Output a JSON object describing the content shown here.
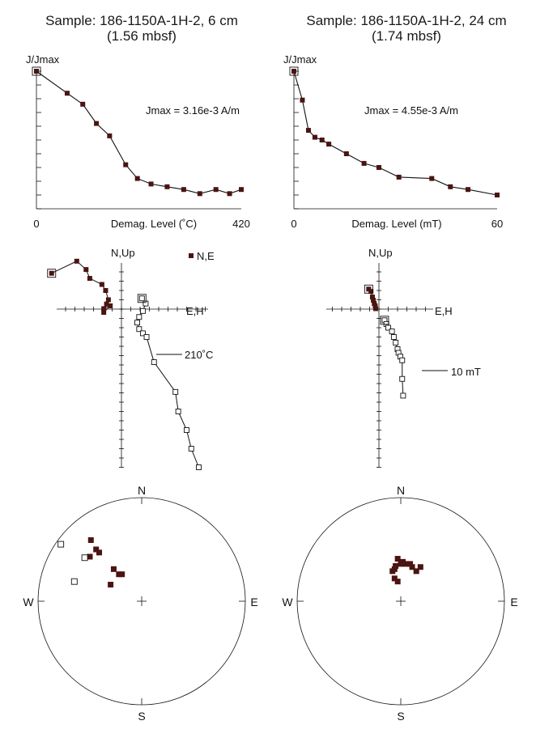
{
  "colors": {
    "ink": "#111111",
    "marker": "#4a1410",
    "background": "#ffffff"
  },
  "samples": [
    {
      "title": "Sample: 186-1150A-1H-2,  6 cm",
      "depth": "(1.56 mbsf)"
    },
    {
      "title": "Sample: 186-1150A-1H-2,  24 cm",
      "depth": "(1.74 mbsf)"
    }
  ],
  "chart_data": [
    {
      "type": "line",
      "panel": "intensity-left",
      "ylabel": "J/Jmax",
      "xlabel": "Demag. Level (˚C)",
      "xtick_labels": [
        "0",
        "420"
      ],
      "annotation": "Jmax = 3.16e-3 A/m",
      "xlim": [
        0,
        420
      ],
      "ylim": [
        0,
        1
      ],
      "x": [
        0,
        63,
        95,
        123,
        150,
        183,
        207,
        235,
        268,
        302,
        335,
        368,
        396,
        420
      ],
      "values": [
        1.0,
        0.84,
        0.76,
        0.62,
        0.53,
        0.32,
        0.22,
        0.18,
        0.16,
        0.14,
        0.11,
        0.14,
        0.11,
        0.14
      ]
    },
    {
      "type": "line",
      "panel": "intensity-right",
      "ylabel": "J/Jmax",
      "xlabel": "Demag. Level (mT)",
      "xtick_labels": [
        "0",
        "60"
      ],
      "annotation": "Jmax = 4.55e-3 A/m",
      "xlim": [
        0,
        60
      ],
      "ylim": [
        0,
        1
      ],
      "x": [
        0,
        2.5,
        4.3,
        6.2,
        8.3,
        10.3,
        15.5,
        20.7,
        25.1,
        31,
        40.7,
        46.2,
        51.4,
        60
      ],
      "values": [
        1.0,
        0.79,
        0.57,
        0.52,
        0.5,
        0.47,
        0.4,
        0.33,
        0.3,
        0.23,
        0.22,
        0.16,
        0.14,
        0.1
      ]
    },
    {
      "type": "scatter",
      "panel": "zijderveld-left",
      "axis_labels": {
        "n_up": "N,Up",
        "e_h": "E,H"
      },
      "legend": "N,E",
      "annotation": "210˚C",
      "xlim": [
        -8,
        11
      ],
      "ylim": [
        -20,
        4
      ],
      "series": [
        {
          "name": "N,E",
          "x": [
            -7.5,
            -4.8,
            -3.8,
            -3.4,
            -2.1,
            -1.7,
            -1.4,
            -1.6,
            -1.9,
            -1.2,
            -1.9
          ],
          "y": [
            3.85,
            5.15,
            4.25,
            3.3,
            2.65,
            2.0,
            1.0,
            0.55,
            0.05,
            0.35,
            -0.35
          ]
        },
        {
          "name": "",
          "x": [
            2.2,
            2.6,
            2.3,
            1.9,
            1.7,
            1.9,
            2.3,
            2.7,
            3.5,
            5.8,
            6.1,
            7.0,
            7.5,
            8.3
          ],
          "y": [
            1.15,
            0.6,
            -0.2,
            -0.85,
            -1.45,
            -2.15,
            -2.6,
            -3.0,
            -5.7,
            -8.9,
            -11.0,
            -13.0,
            -15.0,
            -17.0
          ]
        }
      ]
    },
    {
      "type": "scatter",
      "panel": "zijderveld-right",
      "axis_labels": {
        "n_up": "N,Up",
        "e_h": "E,H"
      },
      "annotation": "10 mT",
      "xlim": [
        -2,
        4
      ],
      "ylim": [
        -10,
        2
      ],
      "series": [
        {
          "name": "N,E",
          "x": [
            -1.1,
            -0.85,
            -0.7,
            -0.6,
            -0.5,
            -0.4,
            -0.35
          ],
          "y": [
            2.15,
            1.9,
            1.3,
            0.95,
            0.6,
            0.35,
            0.05
          ]
        },
        {
          "name": "",
          "x": [
            0.6,
            0.8,
            1.0,
            1.4,
            1.6,
            1.8,
            2.0,
            2.1,
            2.3,
            2.5,
            2.5,
            2.6
          ],
          "y": [
            -1.2,
            -1.6,
            -2.0,
            -2.4,
            -3.0,
            -3.6,
            -4.3,
            -4.7,
            -5.1,
            -5.5,
            -7.5,
            -9.3
          ]
        }
      ]
    },
    {
      "type": "scatter",
      "panel": "stereonet-left",
      "labels": {
        "n": "N",
        "e": "E",
        "s": "S",
        "w": "W"
      },
      "series": [
        {
          "name": "lower-hemisphere",
          "x": [
            -0.49,
            -0.44,
            -0.41,
            -0.5,
            -0.27,
            -0.22,
            -0.19,
            -0.3
          ],
          "y": [
            0.59,
            0.5,
            0.47,
            0.43,
            0.31,
            0.26,
            0.26,
            0.16
          ]
        },
        {
          "name": "upper-hemisphere",
          "x": [
            -0.78,
            -0.55,
            -0.65
          ],
          "y": [
            0.55,
            0.42,
            0.19
          ]
        }
      ]
    },
    {
      "type": "scatter",
      "panel": "stereonet-right",
      "labels": {
        "n": "N",
        "e": "E",
        "s": "S",
        "w": "W"
      },
      "series": [
        {
          "name": "lower-hemisphere",
          "x": [
            -0.03,
            0.0,
            -0.05,
            0.05,
            0.02,
            -0.06,
            0.09,
            -0.08,
            0.11,
            0.19,
            0.15,
            -0.06,
            -0.03
          ],
          "y": [
            0.41,
            0.36,
            0.34,
            0.36,
            0.38,
            0.31,
            0.36,
            0.29,
            0.33,
            0.33,
            0.29,
            0.22,
            0.19
          ]
        }
      ]
    }
  ]
}
